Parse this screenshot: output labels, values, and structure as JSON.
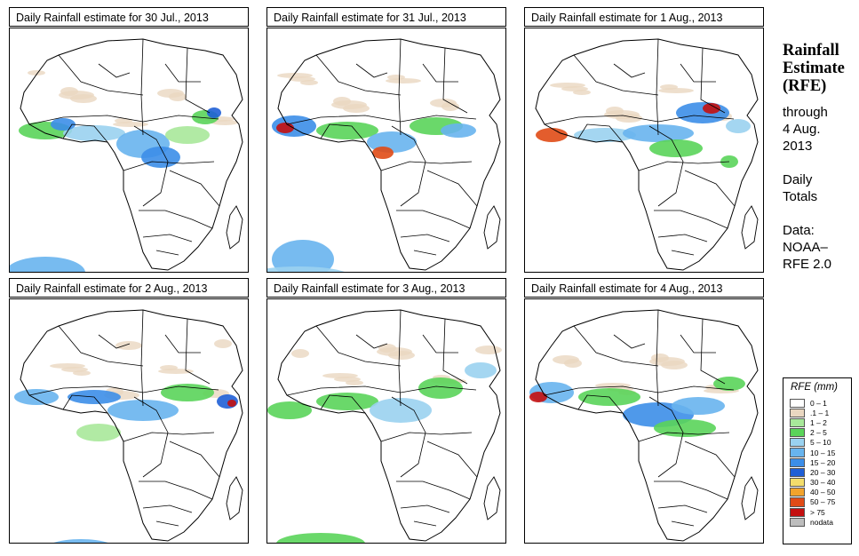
{
  "panels": [
    {
      "title": "Daily Rainfall estimate for  30 Jul., 2013",
      "date": "30 Jul."
    },
    {
      "title": "Daily Rainfall estimate for  31 Jul., 2013",
      "date": "31 Jul."
    },
    {
      "title": "Daily Rainfall estimate for  1 Aug., 2013",
      "date": "1 Aug."
    },
    {
      "title": "Daily Rainfall estimate for  2 Aug., 2013",
      "date": "2 Aug."
    },
    {
      "title": "Daily Rainfall estimate for  3 Aug., 2013",
      "date": "3 Aug."
    },
    {
      "title": "Daily Rainfall estimate for  4 Aug., 2013",
      "date": "4 Aug."
    }
  ],
  "side": {
    "title_lines": [
      "Rainfall",
      "Estimate",
      "(RFE)"
    ],
    "through_lines": [
      "through",
      "4 Aug.",
      "2013"
    ],
    "totals_lines": [
      "Daily",
      "Totals"
    ],
    "data_lines": [
      "Data:",
      "NOAA–",
      "RFE 2.0"
    ]
  },
  "legend": {
    "title": "RFE (mm)",
    "classes": [
      {
        "label": "0 – 1",
        "color": "#ffffff"
      },
      {
        "label": ".1 – 1",
        "color": "#ead7c1"
      },
      {
        "label": "1 – 2",
        "color": "#a8e89a"
      },
      {
        "label": "2 – 5",
        "color": "#5ad45a"
      },
      {
        "label": "5 – 10",
        "color": "#9ad2f0"
      },
      {
        "label": "10 – 15",
        "color": "#68b4ee"
      },
      {
        "label": "15 – 20",
        "color": "#3c8ee8"
      },
      {
        "label": "20 – 30",
        "color": "#1f5fd6"
      },
      {
        "label": "30 – 40",
        "color": "#f3dd6b"
      },
      {
        "label": "40 – 50",
        "color": "#f2a32c"
      },
      {
        "label": "50 – 75",
        "color": "#e04b16"
      },
      {
        "label": "> 75",
        "color": "#c40f0f"
      },
      {
        "label": "nodata",
        "color": "#bdbdbd"
      }
    ]
  }
}
